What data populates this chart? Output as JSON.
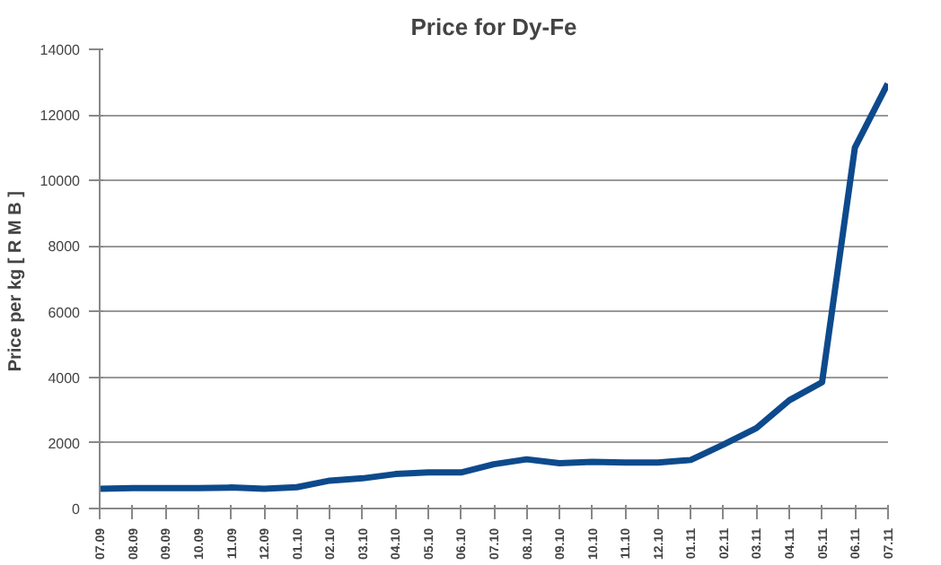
{
  "chart_data": {
    "type": "line",
    "title": "Price for Dy-Fe",
    "ylabel": "Price per kg  [ R M B ]",
    "categories": [
      "07.09",
      "08.09",
      "09.09",
      "10.09",
      "11.09",
      "12.09",
      "01.10",
      "02.10",
      "03.10",
      "04.10",
      "05.10",
      "06.10",
      "07.10",
      "08.10",
      "09.10",
      "10.10",
      "11.10",
      "12.10",
      "01.11",
      "02.11",
      "03.11",
      "04.11",
      "05.11",
      "06.11",
      "07.11"
    ],
    "series": [
      {
        "color": "#0d4a8c",
        "values": [
          600,
          620,
          620,
          620,
          640,
          600,
          650,
          850,
          920,
          1050,
          1100,
          1100,
          1350,
          1500,
          1380,
          1420,
          1400,
          1400,
          1480,
          1950,
          2450,
          3300,
          3850,
          11000,
          12950
        ]
      }
    ],
    "ylim": [
      0,
      14000
    ],
    "yticks": [
      0,
      2000,
      4000,
      6000,
      8000,
      10000,
      12000,
      14000
    ],
    "grid": "y",
    "marker": "none",
    "line_style": "solid"
  }
}
